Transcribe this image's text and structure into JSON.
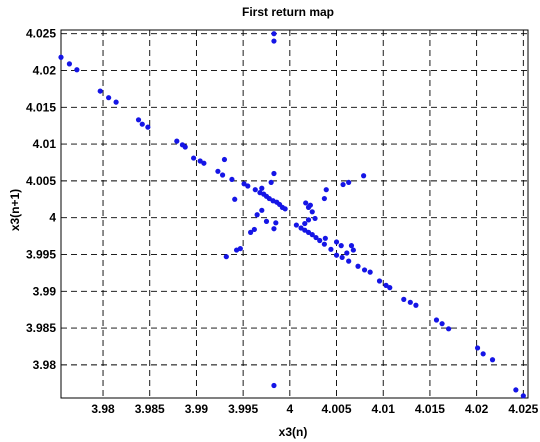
{
  "chart_data": {
    "type": "scatter",
    "title": "First return map",
    "xlabel": "x3(n)",
    "ylabel": "x3(n+1)",
    "xlim": [
      3.9755,
      4.0255
    ],
    "ylim": [
      3.9755,
      4.0255
    ],
    "grid": true,
    "color": "#1515e6",
    "xticks": [
      3.98,
      3.985,
      3.99,
      3.995,
      4.0,
      4.005,
      4.01,
      4.015,
      4.02,
      4.025
    ],
    "xtick_labels": [
      "3.98",
      "3.985",
      "3.99",
      "3.995",
      "4",
      "4.005",
      "4.01",
      "4.015",
      "4.02",
      "4.025"
    ],
    "yticks": [
      3.98,
      3.985,
      3.99,
      3.995,
      4.0,
      4.005,
      4.01,
      4.015,
      4.02,
      4.025
    ],
    "ytick_labels": [
      "3.98",
      "3.985",
      "3.99",
      "3.995",
      "4",
      "4.005",
      "4.01",
      "4.015",
      "4.02",
      "4.025"
    ],
    "points": [
      [
        3.9755,
        4.0218
      ],
      [
        3.9764,
        4.0209
      ],
      [
        3.9772,
        4.0201
      ],
      [
        3.9797,
        4.0172
      ],
      [
        3.9806,
        4.0163
      ],
      [
        3.9814,
        4.0157
      ],
      [
        3.9838,
        4.0133
      ],
      [
        3.9842,
        4.0127
      ],
      [
        3.9848,
        4.0123
      ],
      [
        3.9879,
        4.0104
      ],
      [
        3.9885,
        4.0099
      ],
      [
        3.9888,
        4.0096
      ],
      [
        3.9897,
        4.0081
      ],
      [
        3.9904,
        4.0077
      ],
      [
        3.9908,
        4.0074
      ],
      [
        3.9923,
        4.0063
      ],
      [
        3.9928,
        4.0058
      ],
      [
        3.9938,
        4.0052
      ],
      [
        3.9951,
        4.0046
      ],
      [
        3.9955,
        4.0043
      ],
      [
        3.9963,
        4.0038
      ],
      [
        3.9968,
        4.0034
      ],
      [
        3.9972,
        4.0032
      ],
      [
        3.9975,
        4.0029
      ],
      [
        3.9978,
        4.0026
      ],
      [
        3.9982,
        4.0023
      ],
      [
        3.9986,
        4.0021
      ],
      [
        3.9989,
        4.0018
      ],
      [
        3.9992,
        4.0014
      ],
      [
        3.9995,
        4.0012
      ],
      [
        4.0007,
        3.999
      ],
      [
        4.0012,
        3.9986
      ],
      [
        4.0016,
        3.9983
      ],
      [
        4.002,
        3.998
      ],
      [
        4.0024,
        3.9977
      ],
      [
        4.0028,
        3.9973
      ],
      [
        4.0032,
        3.9969
      ],
      [
        4.0037,
        3.9964
      ],
      [
        4.0044,
        3.9957
      ],
      [
        4.005,
        3.9949
      ],
      [
        4.0056,
        3.9946
      ],
      [
        4.0063,
        3.9941
      ],
      [
        4.0073,
        3.9934
      ],
      [
        4.008,
        3.9929
      ],
      [
        4.0086,
        3.9926
      ],
      [
        4.0096,
        3.9914
      ],
      [
        4.0103,
        3.9908
      ],
      [
        4.0107,
        3.9905
      ],
      [
        4.0122,
        3.9889
      ],
      [
        4.0129,
        3.9885
      ],
      [
        4.0135,
        3.9881
      ],
      [
        4.0157,
        3.9861
      ],
      [
        4.0163,
        3.9856
      ],
      [
        4.017,
        3.9849
      ],
      [
        4.0201,
        3.9823
      ],
      [
        4.0207,
        3.9815
      ],
      [
        4.0217,
        3.9807
      ],
      [
        4.0242,
        3.9766
      ],
      [
        4.025,
        3.9758
      ],
      [
        3.9983,
        4.025
      ],
      [
        3.9983,
        4.024
      ],
      [
        3.9983,
        3.9772
      ],
      [
        3.9983,
        4.006
      ],
      [
        3.9983,
        3.9985
      ],
      [
        3.9985,
        3.9993
      ],
      [
        3.993,
        4.0079
      ],
      [
        3.9932,
        3.9947
      ],
      [
        3.9943,
        3.9956
      ],
      [
        3.9947,
        3.9958
      ],
      [
        3.9941,
        4.0025
      ],
      [
        3.9965,
        4.0004
      ],
      [
        3.997,
        4.001
      ],
      [
        3.9958,
        3.998
      ],
      [
        3.9962,
        3.9984
      ],
      [
        3.9975,
        3.9995
      ],
      [
        3.997,
        4.004
      ],
      [
        3.998,
        4.0048
      ],
      [
        4.0017,
        4.002
      ],
      [
        4.002,
        4.0014
      ],
      [
        4.0024,
        4.0008
      ],
      [
        4.0016,
        3.9992
      ],
      [
        4.0022,
        4.0017
      ],
      [
        4.0037,
        4.0026
      ],
      [
        4.0039,
        4.0038
      ],
      [
        4.0057,
        4.0045
      ],
      [
        4.0063,
        4.0048
      ],
      [
        4.0079,
        4.0057
      ],
      [
        4.002,
        3.9997
      ],
      [
        4.0027,
        3.9999
      ],
      [
        4.0038,
        3.9972
      ],
      [
        4.005,
        3.9967
      ],
      [
        4.0055,
        3.9962
      ],
      [
        4.0068,
        3.9956
      ],
      [
        4.0066,
        3.9962
      ],
      [
        4.0061,
        3.9952
      ]
    ]
  }
}
